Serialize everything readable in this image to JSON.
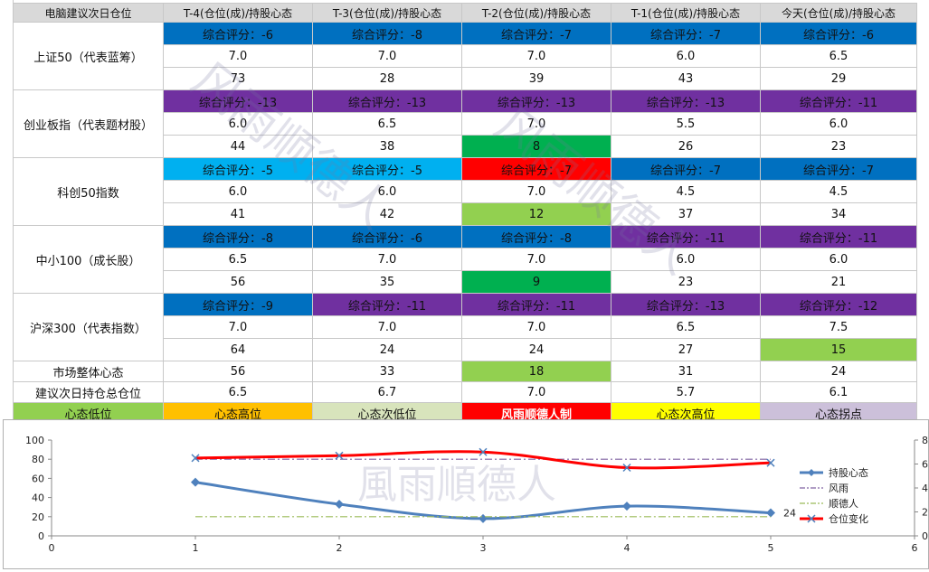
{
  "header": {
    "corner": "电脑建议次日仓位",
    "columns": [
      "T-4(仓位(成)/持股心态",
      "T-3(仓位(成)/持股心态",
      "T-2(仓位(成)/持股心态",
      "T-1(仓位(成)/持股心态",
      "今天(仓位(成)/持股心态"
    ]
  },
  "indices": [
    {
      "name": "上证50（代表蓝筹）",
      "scores": [
        "综合评分：-6",
        "综合评分：-8",
        "综合评分：-7",
        "综合评分：-7",
        "综合评分：-6"
      ],
      "score_colors": [
        "#0070c0",
        "#0070c0",
        "#0070c0",
        "#0070c0",
        "#0070c0"
      ],
      "positions": [
        "7.0",
        "7.0",
        "7.0",
        "6.0",
        "6.5"
      ],
      "mood": [
        "73",
        "28",
        "39",
        "43",
        "29"
      ],
      "mood_colors": [
        "#ffffff",
        "#ffffff",
        "#ffffff",
        "#ffffff",
        "#ffffff"
      ]
    },
    {
      "name": "创业板指（代表题材股）",
      "scores": [
        "综合评分：-13",
        "综合评分：-13",
        "综合评分：-13",
        "综合评分：-13",
        "综合评分：-11"
      ],
      "score_colors": [
        "#7030a0",
        "#7030a0",
        "#7030a0",
        "#7030a0",
        "#7030a0"
      ],
      "positions": [
        "6.0",
        "6.5",
        "7.0",
        "5.5",
        "6.0"
      ],
      "mood": [
        "44",
        "38",
        "8",
        "26",
        "23"
      ],
      "mood_colors": [
        "#ffffff",
        "#ffffff",
        "#00b050",
        "#ffffff",
        "#ffffff"
      ]
    },
    {
      "name": "科创50指数",
      "scores": [
        "综合评分：-5",
        "综合评分：-5",
        "综合评分：-7",
        "综合评分：-7",
        "综合评分：-7"
      ],
      "score_colors": [
        "#00b0f0",
        "#00b0f0",
        "#ff0000",
        "#0070c0",
        "#0070c0"
      ],
      "positions": [
        "6.0",
        "6.0",
        "7.0",
        "4.5",
        "4.5"
      ],
      "mood": [
        "41",
        "42",
        "12",
        "37",
        "34"
      ],
      "mood_colors": [
        "#ffffff",
        "#ffffff",
        "#92d050",
        "#ffffff",
        "#ffffff"
      ]
    },
    {
      "name": "中小100（成长股）",
      "scores": [
        "综合评分：-8",
        "综合评分：-6",
        "综合评分：-8",
        "综合评分：-11",
        "综合评分：-11"
      ],
      "score_colors": [
        "#0070c0",
        "#0070c0",
        "#0070c0",
        "#7030a0",
        "#7030a0"
      ],
      "positions": [
        "6.5",
        "7.0",
        "7.0",
        "6.0",
        "6.0"
      ],
      "mood": [
        "56",
        "35",
        "9",
        "23",
        "21"
      ],
      "mood_colors": [
        "#ffffff",
        "#ffffff",
        "#00b050",
        "#ffffff",
        "#ffffff"
      ]
    },
    {
      "name": "沪深300（代表指数）",
      "scores": [
        "综合评分：-9",
        "综合评分：-11",
        "综合评分：-11",
        "综合评分：-13",
        "综合评分：-12"
      ],
      "score_colors": [
        "#0070c0",
        "#7030a0",
        "#7030a0",
        "#7030a0",
        "#7030a0"
      ],
      "positions": [
        "7.0",
        "7.0",
        "7.0",
        "6.5",
        "7.5"
      ],
      "mood": [
        "64",
        "24",
        "24",
        "27",
        "15"
      ],
      "mood_colors": [
        "#ffffff",
        "#ffffff",
        "#ffffff",
        "#ffffff",
        "#92d050"
      ]
    }
  ],
  "market": {
    "label": "市场整体心态",
    "values": [
      "56",
      "33",
      "18",
      "31",
      "24"
    ],
    "colors": [
      "#ffffff",
      "#ffffff",
      "#92d050",
      "#ffffff",
      "#ffffff"
    ]
  },
  "suggest": {
    "label": "建议次日持仓总仓位",
    "values": [
      "6.5",
      "6.7",
      "7.0",
      "5.7",
      "6.1"
    ]
  },
  "legend_row": {
    "items": [
      "心态低位",
      "心态高位",
      "心态次低位",
      "风雨顺德人制",
      "心态次高位",
      "心态拐点"
    ],
    "colors": [
      "#92d050",
      "#ffc000",
      "#d8e4bc",
      "#ff0000",
      "#ffff00",
      "#ccc0da"
    ]
  },
  "watermark": {
    "text_a": "风雨顺德人",
    "text_b": "风雨顺德人",
    "text_c": "風雨順德人"
  },
  "chart_data": {
    "type": "line",
    "x": [
      1,
      2,
      3,
      4,
      5
    ],
    "xlim": [
      0,
      6
    ],
    "xticks": [
      "0",
      "1",
      "2",
      "3",
      "4",
      "5",
      "6"
    ],
    "ylim": [
      0,
      100
    ],
    "yticks": [
      "0",
      "20",
      "40",
      "60",
      "80",
      "100"
    ],
    "y2lim": [
      0,
      8
    ],
    "y2ticks": [
      "0",
      "2",
      "4",
      "6",
      "8"
    ],
    "series": [
      {
        "name": "持股心态",
        "axis": "left",
        "values": [
          56,
          33,
          18,
          31,
          24
        ],
        "color": "#4f81bd",
        "marker": "diamond"
      },
      {
        "name": "风雨",
        "axis": "left",
        "values": [
          80,
          80,
          80,
          80,
          80
        ],
        "color": "#8064a2",
        "style": "dashdot"
      },
      {
        "name": "顺德人",
        "axis": "left",
        "values": [
          20,
          20,
          20,
          20,
          20
        ],
        "color": "#9bbb59",
        "style": "dashdot"
      },
      {
        "name": "仓位变化",
        "axis": "right",
        "values": [
          6.5,
          6.7,
          7.0,
          5.7,
          6.1
        ],
        "color": "#ff0000",
        "marker": "x"
      }
    ],
    "last_label": "24"
  }
}
